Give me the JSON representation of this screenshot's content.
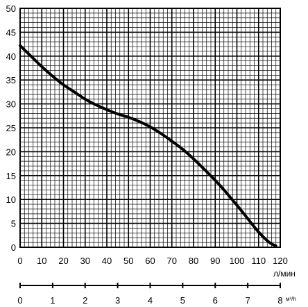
{
  "chart_data": {
    "type": "line",
    "x_unit": "л/мин",
    "x2_unit": "м³/h",
    "xlim": [
      0,
      120
    ],
    "ylim": [
      0,
      50
    ],
    "x_ticks": [
      0,
      10,
      20,
      30,
      40,
      50,
      60,
      70,
      80,
      90,
      100,
      110,
      120
    ],
    "x_tick_labels": [
      "0",
      "10",
      "20",
      "30",
      "40",
      "50",
      "60",
      "70",
      "80",
      "90",
      "100",
      "110",
      "120"
    ],
    "y_ticks": [
      0,
      5,
      10,
      15,
      20,
      25,
      30,
      35,
      40,
      45,
      50
    ],
    "y_tick_labels": [
      "0",
      "5",
      "10",
      "15",
      "20",
      "25",
      "30",
      "35",
      "40",
      "45",
      "50"
    ],
    "x2lim": [
      0,
      8
    ],
    "x2_ticks": [
      0,
      1,
      2,
      3,
      4,
      5,
      6,
      7,
      8
    ],
    "x2_tick_labels": [
      "0",
      "1",
      "2",
      "3",
      "4",
      "5",
      "6",
      "7",
      "8"
    ],
    "grid": true,
    "series": [
      {
        "color": "#000000",
        "x": [
          0,
          5,
          10,
          15,
          20,
          25,
          30,
          35,
          40,
          45,
          50,
          55,
          60,
          65,
          70,
          75,
          80,
          85,
          90,
          95,
          100,
          105,
          110,
          115,
          118
        ],
        "y": [
          42.2,
          40.0,
          37.8,
          35.8,
          34.0,
          32.5,
          31.0,
          29.8,
          28.8,
          27.9,
          27.2,
          26.3,
          25.2,
          23.8,
          22.2,
          20.5,
          18.5,
          16.3,
          14.0,
          11.5,
          8.8,
          6.0,
          3.2,
          1.0,
          0.3
        ]
      }
    ]
  }
}
